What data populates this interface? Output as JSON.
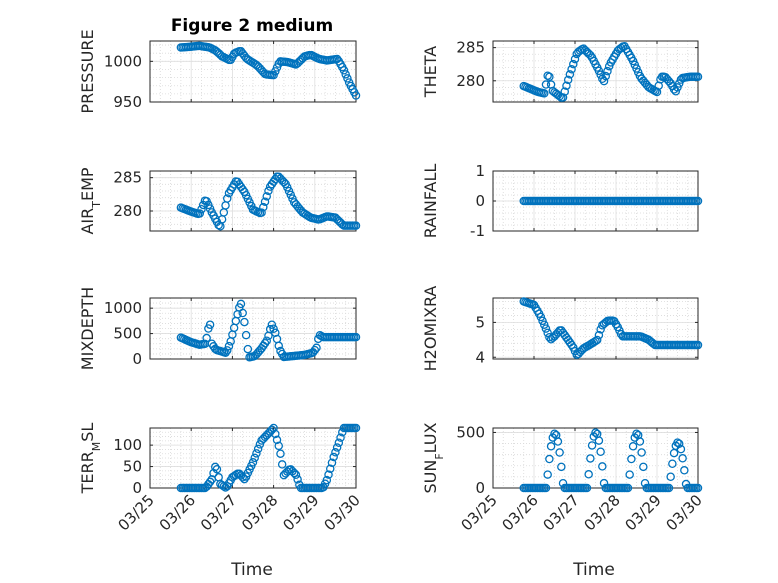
{
  "chart_data": {
    "type": "scatter",
    "title": "Figure 2 medium",
    "xlabel": "Time",
    "x_ticks": [
      "03/25",
      "03/26",
      "03/27",
      "03/28",
      "03/29",
      "03/30"
    ],
    "marker_color": "#0072bd",
    "grid": true,
    "panels": [
      {
        "ylabel": "PRESSURE",
        "ylim": [
          950,
          1025
        ],
        "yticks": [
          "950",
          "1000"
        ],
        "ytick_values": [
          950,
          1000
        ],
        "days": [
          0.75,
          5.0
        ],
        "keys": [
          [
            0.75,
            1017
          ],
          [
            1.0,
            1018
          ],
          [
            1.2,
            1019
          ],
          [
            1.45,
            1017
          ],
          [
            1.6,
            1013
          ],
          [
            1.75,
            1006
          ],
          [
            1.95,
            1001
          ],
          [
            2.05,
            1010
          ],
          [
            2.2,
            1013
          ],
          [
            2.35,
            1003
          ],
          [
            2.6,
            995
          ],
          [
            2.8,
            984
          ],
          [
            3.0,
            983
          ],
          [
            3.15,
            1000
          ],
          [
            3.35,
            999
          ],
          [
            3.55,
            996
          ],
          [
            3.75,
            1006
          ],
          [
            3.9,
            1008
          ],
          [
            4.1,
            1003
          ],
          [
            4.3,
            1001
          ],
          [
            4.55,
            1003
          ],
          [
            4.7,
            990
          ],
          [
            4.85,
            972
          ],
          [
            5.0,
            958
          ]
        ]
      },
      {
        "ylabel": "THETA",
        "ylim": [
          276.8,
          286
        ],
        "yticks": [
          "280",
          "285"
        ],
        "ytick_values": [
          280,
          285
        ],
        "days": [
          0.75,
          5.0
        ],
        "keys": [
          [
            0.75,
            279.2
          ],
          [
            1.1,
            278.3
          ],
          [
            1.25,
            278.1
          ],
          [
            1.35,
            281.3
          ],
          [
            1.45,
            278.5
          ],
          [
            1.7,
            277.3
          ],
          [
            1.85,
            280.5
          ],
          [
            2.05,
            284.2
          ],
          [
            2.2,
            284.9
          ],
          [
            2.4,
            283.7
          ],
          [
            2.6,
            281.3
          ],
          [
            2.7,
            279.8
          ],
          [
            2.85,
            282.5
          ],
          [
            3.05,
            284.6
          ],
          [
            3.2,
            285.3
          ],
          [
            3.4,
            283.2
          ],
          [
            3.6,
            280.5
          ],
          [
            3.8,
            279.0
          ],
          [
            4.0,
            278.3
          ],
          [
            4.1,
            280.6
          ],
          [
            4.2,
            280.6
          ],
          [
            4.35,
            279.5
          ],
          [
            4.45,
            278.3
          ],
          [
            4.6,
            280.4
          ],
          [
            4.8,
            280.6
          ]
        ]
      },
      {
        "ylabel": "AIR_TEMP",
        "ylabel_main": "AIR",
        "ylabel_sub": "T",
        "ylabel_tail": "EMP",
        "ylim": [
          277,
          286
        ],
        "yticks": [
          "280",
          "285"
        ],
        "ytick_values": [
          280,
          285
        ],
        "days": [
          0.75,
          5.0
        ],
        "keys": [
          [
            0.75,
            280.5
          ],
          [
            1.0,
            279.9
          ],
          [
            1.2,
            279.5
          ],
          [
            1.35,
            281.8
          ],
          [
            1.5,
            279.8
          ],
          [
            1.7,
            277.5
          ],
          [
            1.9,
            282.5
          ],
          [
            2.1,
            284.6
          ],
          [
            2.3,
            282.8
          ],
          [
            2.5,
            280.2
          ],
          [
            2.7,
            279.6
          ],
          [
            2.9,
            283.5
          ],
          [
            3.1,
            285.3
          ],
          [
            3.3,
            284.0
          ],
          [
            3.5,
            281.3
          ],
          [
            3.7,
            279.8
          ],
          [
            3.9,
            279.0
          ],
          [
            4.1,
            278.7
          ],
          [
            4.3,
            279.2
          ],
          [
            4.5,
            279.0
          ],
          [
            4.7,
            277.8
          ]
        ]
      },
      {
        "ylabel": "RAINFALL",
        "ylim": [
          -1,
          1
        ],
        "yticks": [
          "-1",
          "0",
          "1"
        ],
        "ytick_values": [
          -1,
          0,
          1
        ],
        "days": [
          0.75,
          5.0
        ],
        "keys": [
          [
            0.75,
            0
          ],
          [
            5.0,
            0
          ]
        ]
      },
      {
        "ylabel": "MIXDEPTH",
        "ylim": [
          0,
          1200
        ],
        "yticks": [
          "0",
          "500",
          "1000"
        ],
        "ytick_values": [
          0,
          500,
          1000
        ],
        "days": [
          0.75,
          5.0
        ],
        "keys": [
          [
            0.75,
            420
          ],
          [
            1.0,
            330
          ],
          [
            1.2,
            280
          ],
          [
            1.35,
            300
          ],
          [
            1.45,
            750
          ],
          [
            1.5,
            300
          ],
          [
            1.6,
            180
          ],
          [
            1.85,
            120
          ],
          [
            1.95,
            320
          ],
          [
            2.1,
            800
          ],
          [
            2.2,
            1120
          ],
          [
            2.3,
            690
          ],
          [
            2.4,
            30
          ],
          [
            2.55,
            60
          ],
          [
            2.7,
            200
          ],
          [
            2.85,
            380
          ],
          [
            2.95,
            690
          ],
          [
            3.05,
            500
          ],
          [
            3.15,
            180
          ],
          [
            3.25,
            40
          ],
          [
            3.5,
            60
          ],
          [
            3.75,
            80
          ],
          [
            3.95,
            120
          ],
          [
            4.05,
            230
          ],
          [
            4.1,
            480
          ],
          [
            4.2,
            430
          ]
        ]
      },
      {
        "ylabel": "H2OMIXRA",
        "ylim": [
          3.95,
          5.7
        ],
        "yticks": [
          "4",
          "5"
        ],
        "ytick_values": [
          4,
          5
        ],
        "days": [
          0.75,
          5.0
        ],
        "keys": [
          [
            0.75,
            5.6
          ],
          [
            1.0,
            5.5
          ],
          [
            1.15,
            5.2
          ],
          [
            1.3,
            4.8
          ],
          [
            1.4,
            4.5
          ],
          [
            1.5,
            4.6
          ],
          [
            1.65,
            4.8
          ],
          [
            1.8,
            4.55
          ],
          [
            1.95,
            4.3
          ],
          [
            2.05,
            4.05
          ],
          [
            2.2,
            4.25
          ],
          [
            2.35,
            4.35
          ],
          [
            2.55,
            4.5
          ],
          [
            2.65,
            4.9
          ],
          [
            2.8,
            5.05
          ],
          [
            2.95,
            5.05
          ],
          [
            3.05,
            4.85
          ],
          [
            3.15,
            4.6
          ],
          [
            3.35,
            4.6
          ],
          [
            3.6,
            4.6
          ],
          [
            3.8,
            4.5
          ],
          [
            3.95,
            4.35
          ]
        ]
      },
      {
        "ylabel": "TERR_MSL",
        "ylabel_main": "TERR",
        "ylabel_sub": "M",
        "ylabel_tail": "SL",
        "ylim": [
          0,
          140
        ],
        "yticks": [
          "0",
          "50",
          "100"
        ],
        "ytick_values": [
          0,
          50,
          100
        ],
        "days": [
          0.75,
          5.0
        ],
        "keys": [
          [
            0.75,
            0
          ],
          [
            1.35,
            0
          ],
          [
            1.5,
            20
          ],
          [
            1.6,
            55
          ],
          [
            1.7,
            10
          ],
          [
            1.85,
            0
          ],
          [
            2.0,
            25
          ],
          [
            2.15,
            35
          ],
          [
            2.3,
            20
          ],
          [
            2.5,
            60
          ],
          [
            2.7,
            110
          ],
          [
            2.85,
            125
          ],
          [
            3.0,
            140
          ],
          [
            3.15,
            90
          ],
          [
            3.25,
            30
          ],
          [
            3.4,
            45
          ],
          [
            3.55,
            30
          ],
          [
            3.65,
            0
          ],
          [
            4.2,
            0
          ],
          [
            4.3,
            20
          ],
          [
            4.45,
            70
          ],
          [
            4.6,
            110
          ],
          [
            4.7,
            140
          ]
        ]
      },
      {
        "ylabel": "SUN_FLUX",
        "ylabel_main": "SUN",
        "ylabel_sub": "F",
        "ylabel_tail": "LUX",
        "ylim": [
          0,
          540
        ],
        "yticks": [
          "0",
          "500"
        ],
        "ytick_values": [
          0,
          500
        ],
        "days": [
          0.75,
          5.0
        ],
        "daylight": true,
        "peaks": [
          490,
          500,
          490,
          410
        ]
      }
    ]
  }
}
